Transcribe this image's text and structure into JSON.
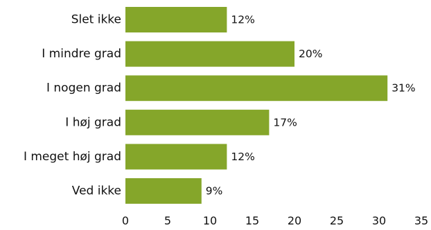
{
  "chart_data": {
    "type": "bar",
    "orientation": "horizontal",
    "categories": [
      "Slet ikke",
      "I mindre grad",
      "I nogen grad",
      "I høj grad",
      "I meget høj grad",
      "Ved ikke"
    ],
    "values": [
      12,
      20,
      31,
      17,
      12,
      9
    ],
    "data_labels": [
      "12%",
      "20%",
      "31%",
      "17%",
      "12%",
      "9%"
    ],
    "xlim": [
      0,
      35
    ],
    "xticks": [
      0,
      5,
      10,
      15,
      20,
      25,
      30,
      35
    ],
    "xtick_labels": [
      "0",
      "5",
      "10",
      "15",
      "20",
      "25",
      "30",
      "35"
    ],
    "grid": false,
    "legend": "none",
    "bar_color": "#85a62a"
  }
}
